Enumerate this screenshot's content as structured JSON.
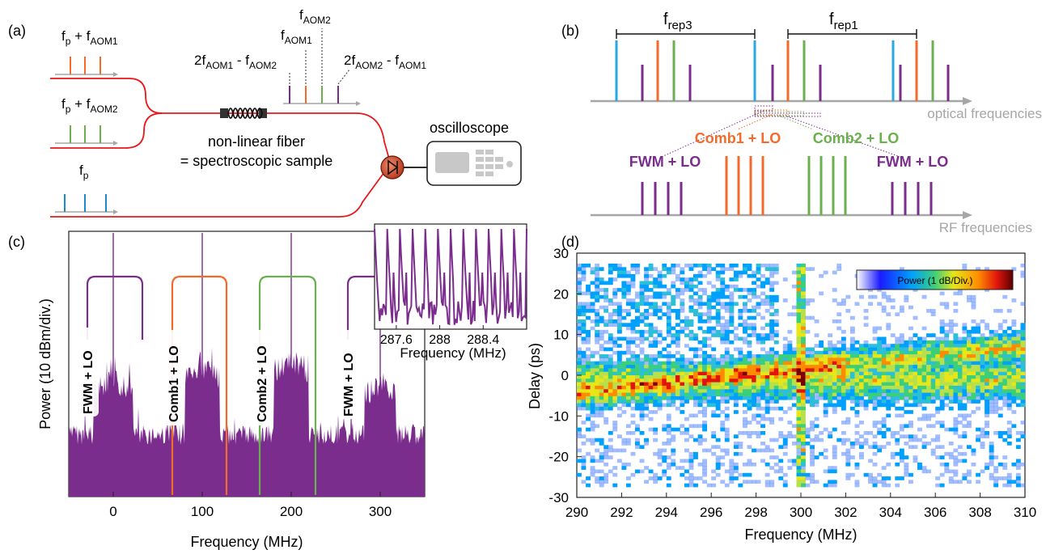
{
  "colors": {
    "red": "#e8191c",
    "orange": "#f26b2b",
    "green": "#6ab04c",
    "blue": "#1e88c9",
    "purple": "#7b2d8e",
    "grey": "#a6a6a6",
    "dark": "#231f20",
    "cyan": "#28a9e1"
  },
  "panel_a": {
    "label": "(a)",
    "line1": {
      "main": "f",
      "sub1": "p",
      "mid": " + f",
      "sub2": "AOM1"
    },
    "line2": {
      "main": "f",
      "sub1": "p",
      "mid": " + f",
      "sub2": "AOM2"
    },
    "line3": {
      "main": "f",
      "sub1": "p"
    },
    "top_aom2": {
      "main": "f",
      "sub": "AOM2"
    },
    "top_aom1": {
      "main": "f",
      "sub": "AOM1"
    },
    "left_fwm": {
      "a": "2f",
      "sa": "AOM1",
      "b": " - f",
      "sb": "AOM2"
    },
    "right_fwm": {
      "a": "2f",
      "sa": "AOM2",
      "b": " - f",
      "sb": "AOM1"
    },
    "fiber_line1": "non-linear fiber",
    "fiber_line2": "= spectroscopic sample",
    "oscilloscope": "oscilloscope",
    "detector_icon": "photodiode-icon",
    "scope_icon": "oscilloscope-icon",
    "fiber_icon": "fiber-coil-icon"
  },
  "panel_b": {
    "label": "(b)",
    "frep3": {
      "main": "f",
      "sub": "rep3"
    },
    "frep1": {
      "main": "f",
      "sub": "rep1"
    },
    "optical": "optical frequencies",
    "rf": "RF frequencies",
    "comb1": "Comb1 + LO",
    "comb2": "Comb2 + LO",
    "fwm_left": "FWM + LO",
    "fwm_right": "FWM + LO"
  },
  "panel_c": {
    "label": "(c)",
    "ylabel": "Power (10 dBm/div.)",
    "xlabel": "Frequency (MHz)",
    "xticks": [
      "0",
      "100",
      "200",
      "300"
    ],
    "band1": "FWM + LO",
    "band2": "Comb1 + LO",
    "band3": "Comb2 + LO",
    "band4": "FWM + LO",
    "inset": {
      "xlabel": "Frequency (MHz)",
      "xticks": [
        "287.6",
        "288",
        "288.4"
      ]
    }
  },
  "panel_d": {
    "label": "(d)",
    "ylabel": "Delay (ps)",
    "xlabel": "Frequency (MHz)",
    "xticks": [
      "290",
      "292",
      "294",
      "296",
      "298",
      "300",
      "302",
      "304",
      "306",
      "308",
      "310"
    ],
    "yticks": [
      "30",
      "20",
      "10",
      "0",
      "-10",
      "-20",
      "-30"
    ],
    "colorbar_label": "Power (1 dB/Div.)"
  },
  "chart_data": [
    {
      "type": "area",
      "ylabel": "Power (10 dBm/div.)",
      "xlabel": "Frequency (MHz)",
      "xlim": [
        -50,
        350
      ],
      "xticks": [
        0,
        100,
        200,
        300
      ],
      "series": [
        {
          "name": "FWM + LO",
          "center": 0
        },
        {
          "name": "Comb1 + LO",
          "center": 100
        },
        {
          "name": "Comb2 + LO",
          "center": 200
        },
        {
          "name": "FWM + LO",
          "center": 300
        }
      ],
      "spikes_mhz": [
        0,
        100,
        200,
        300
      ]
    },
    {
      "type": "line",
      "xlabel": "Frequency (MHz)",
      "xlim": [
        287.4,
        288.8
      ],
      "xticks": [
        287.6,
        288,
        288.4
      ]
    },
    {
      "type": "heatmap",
      "xlabel": "Frequency (MHz)",
      "ylabel": "Delay (ps)",
      "xlim": [
        290,
        310
      ],
      "ylim": [
        -30,
        30
      ],
      "colorbar_label": "Power (1 dB/Div.)"
    }
  ]
}
